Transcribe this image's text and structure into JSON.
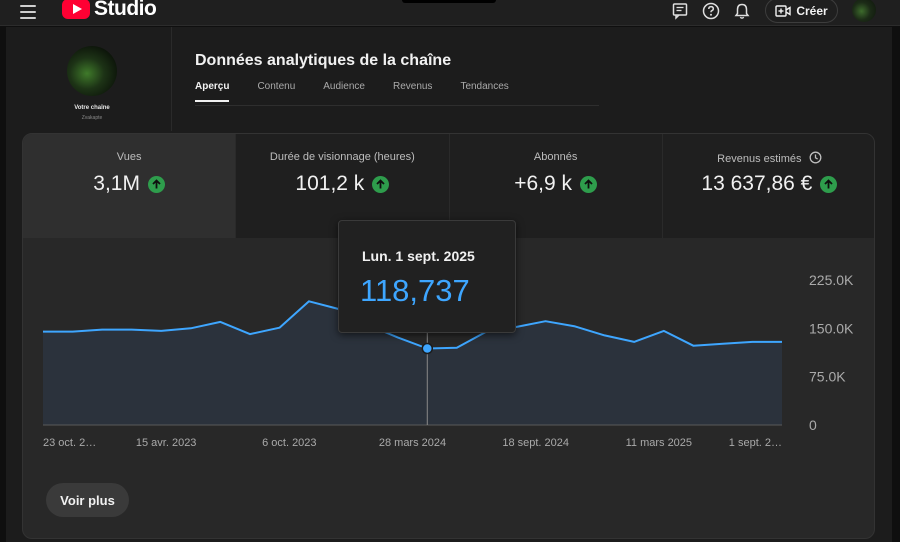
{
  "app": {
    "logo_text": "Studio"
  },
  "topbar": {
    "icons": [
      "menu-icon",
      "feedback-icon",
      "help-icon",
      "notifications-icon",
      "create-video-icon"
    ],
    "create_label": "Créer"
  },
  "channel": {
    "label": "Votre chaîne",
    "name": "Zvakapte"
  },
  "header": {
    "title": "Données analytiques de la chaîne",
    "tabs": [
      {
        "label": "Aperçu",
        "active": true
      },
      {
        "label": "Contenu",
        "active": false
      },
      {
        "label": "Audience",
        "active": false
      },
      {
        "label": "Revenus",
        "active": false
      },
      {
        "label": "Tendances",
        "active": false
      }
    ]
  },
  "metrics": [
    {
      "label": "Vues",
      "value": "3,1M",
      "trend": "up",
      "selected": true
    },
    {
      "label": "Durée de visionnage (heures)",
      "value": "101,2 k",
      "trend": "up",
      "selected": false
    },
    {
      "label": "Abonnés",
      "value": "+6,9 k",
      "trend": "up",
      "selected": false
    },
    {
      "label": "Revenus estimés",
      "value": "13 637,86 €",
      "trend": "up",
      "selected": false,
      "icon": "clock-icon"
    }
  ],
  "tooltip": {
    "date": "Lun. 1 sept. 2025",
    "value": "118,737"
  },
  "chart_data": {
    "type": "area",
    "title": "",
    "xlabel": "",
    "ylabel": "",
    "x_tick_labels": [
      "23 oct. 2…",
      "15 avr. 2023",
      "6 oct. 2023",
      "28 mars 2024",
      "18 sept. 2024",
      "11 mars 2025",
      "1 sept. 2…"
    ],
    "y_tick_labels": [
      "225.0K",
      "150.0K",
      "75.0K",
      "0"
    ],
    "ylim": [
      0,
      225000
    ],
    "grid": false,
    "series": [
      {
        "values": [
          145000,
          145000,
          148000,
          148000,
          146000,
          150000,
          160000,
          141000,
          151000,
          192000,
          180000,
          155000,
          136000,
          118737,
          120000,
          145000,
          152000,
          161000,
          153000,
          139000,
          129000,
          146000,
          123000,
          126000,
          129000,
          129000
        ],
        "color": "#3ea6ff"
      }
    ],
    "highlighted_index": 13
  },
  "buttons": {
    "more_label": "Voir plus"
  },
  "colors": {
    "accent": "#3ea6ff",
    "up": "#2e9d4c",
    "brand": "#ff0033"
  }
}
